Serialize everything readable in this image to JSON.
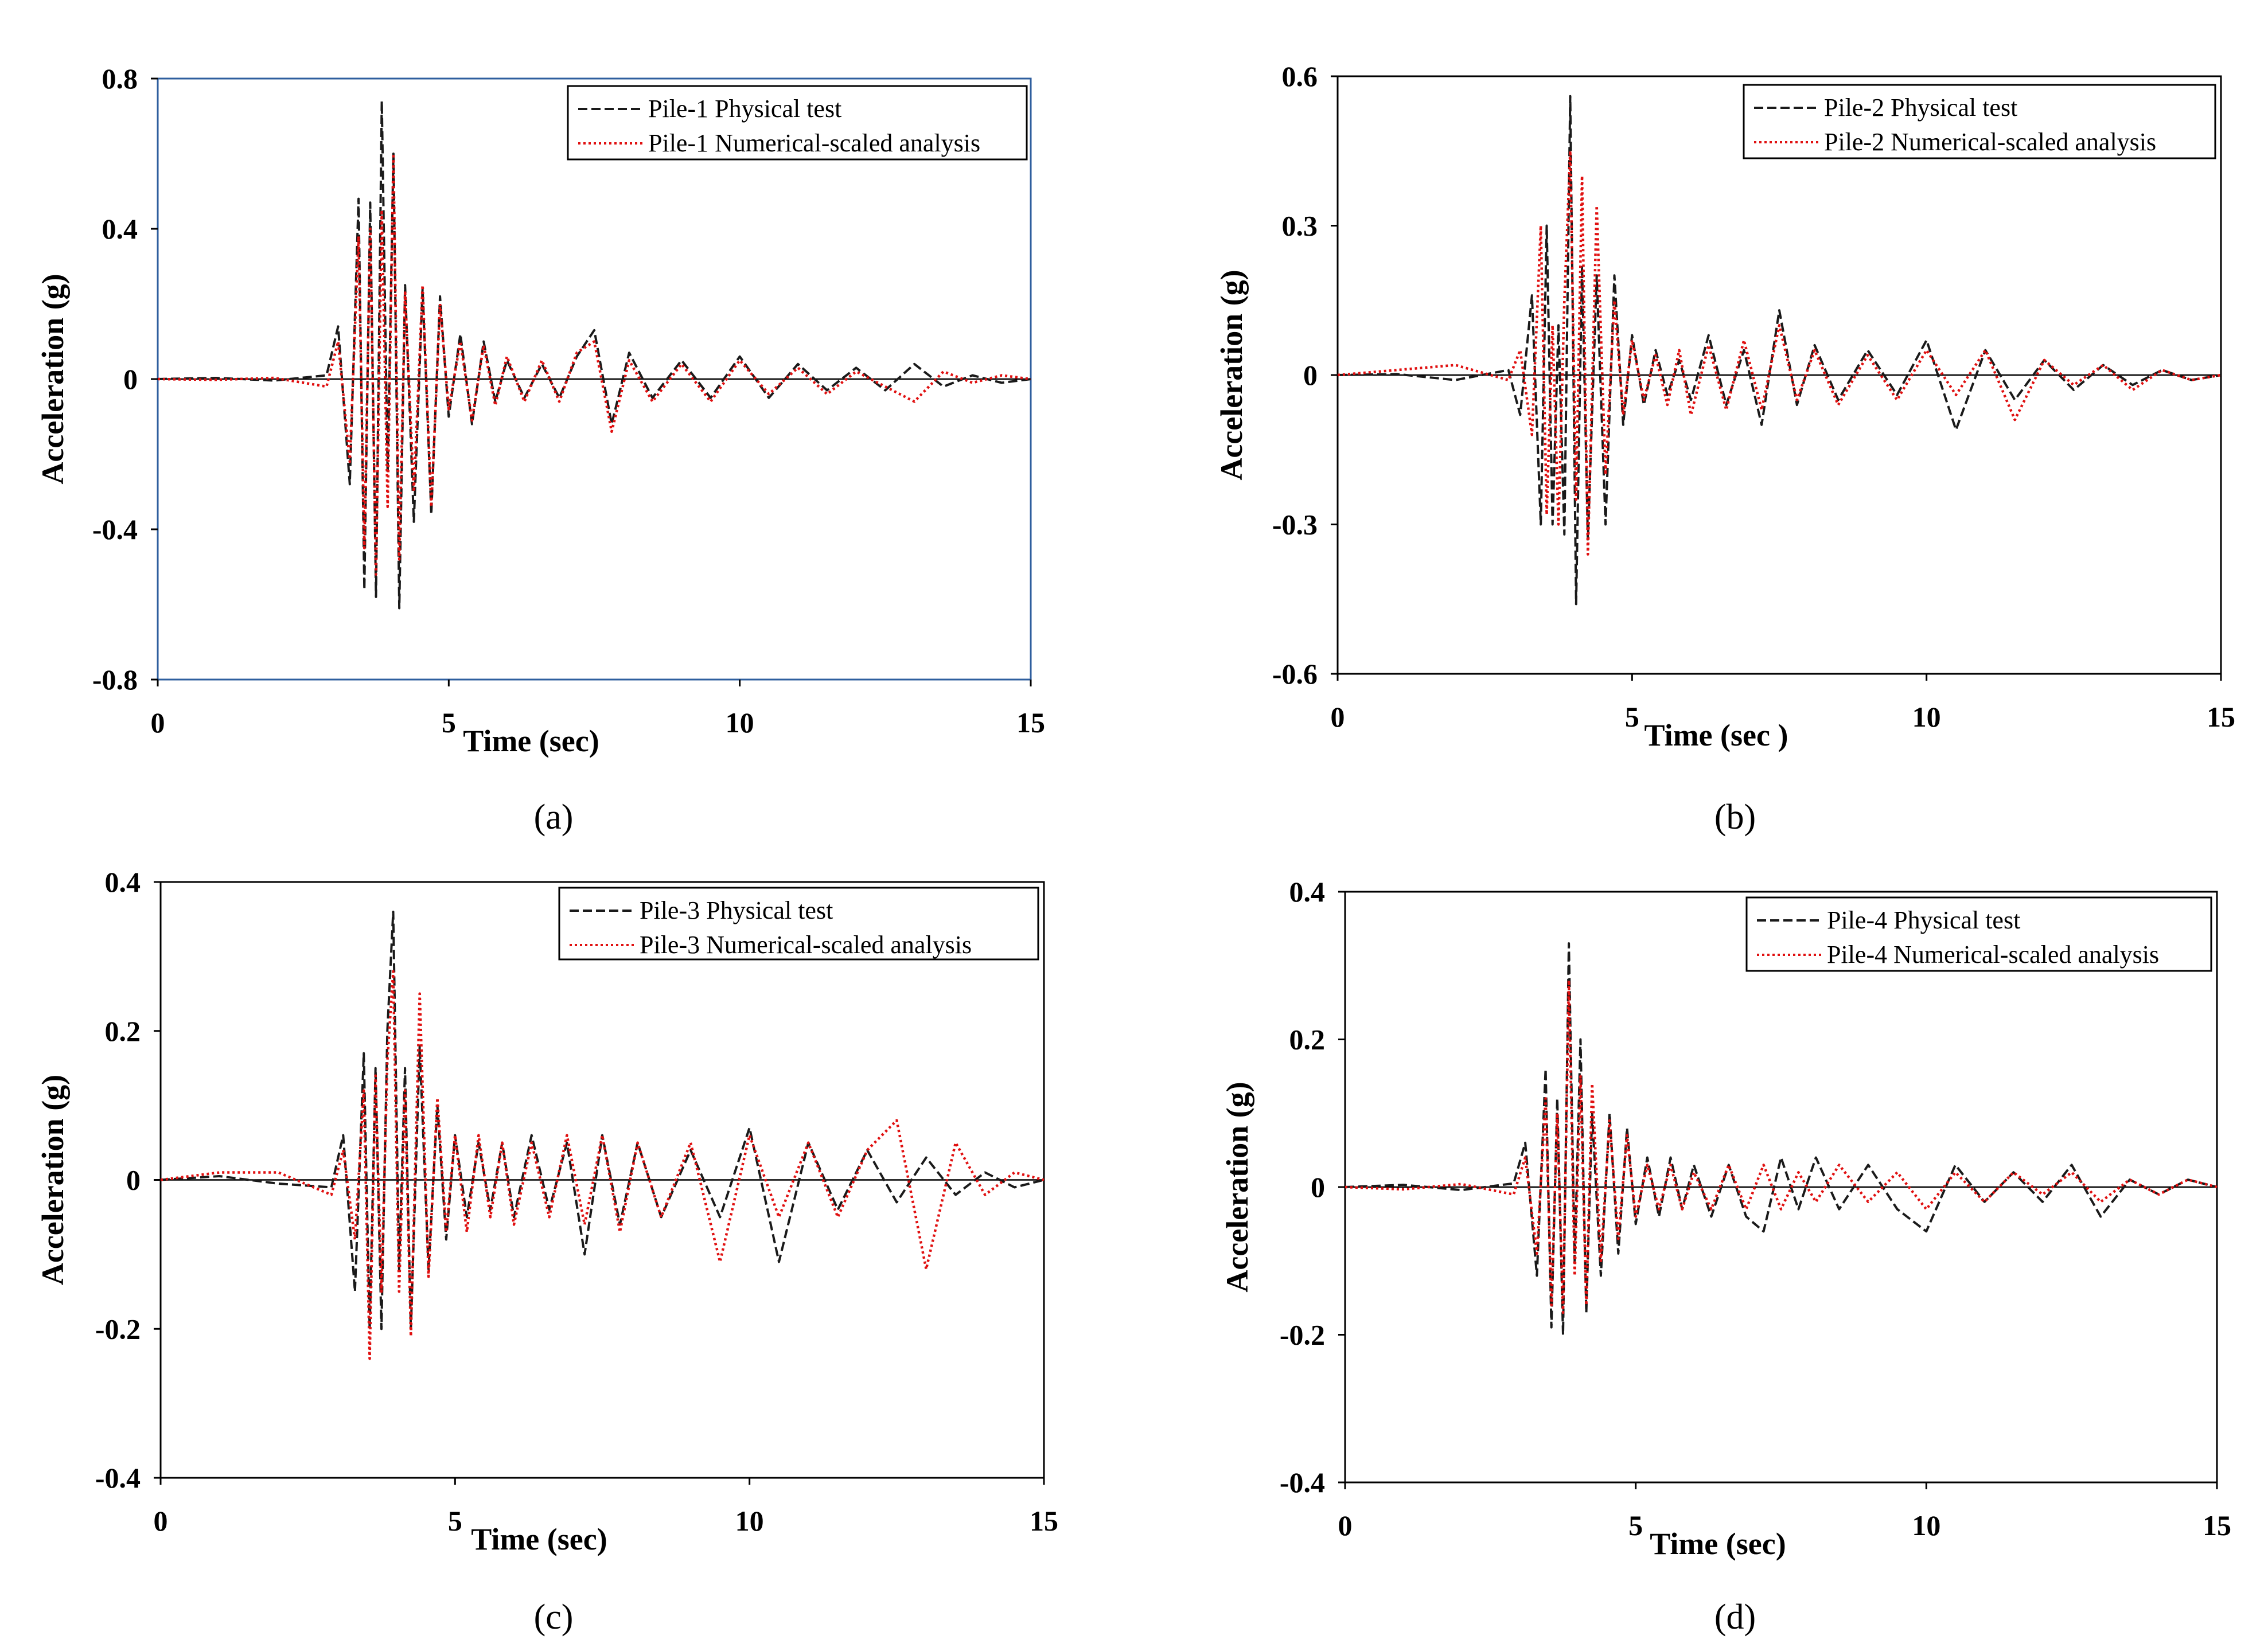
{
  "chart_data": [
    {
      "type": "line",
      "panel_label": "(a)",
      "xlabel": "Time (sec)",
      "ylabel": "Acceleration (g)",
      "xlim": [
        0,
        15
      ],
      "ylim": [
        -0.8,
        0.8
      ],
      "xticks": [
        0,
        5,
        10,
        15
      ],
      "xtick_labels": [
        "0",
        "5",
        "10",
        "15"
      ],
      "yticks": [
        -0.8,
        -0.4,
        0,
        0.4,
        0.8
      ],
      "ytick_labels": [
        "-0.8",
        "-0.4",
        "0",
        "0.4",
        "0.8"
      ],
      "legend_position": "top-right",
      "frame_color": "#2e5e9e",
      "series": [
        {
          "name": "Pile-1 Physical test",
          "color": "#1a1a1a",
          "style": "dashed",
          "x": [
            0,
            1,
            2,
            2.9,
            3.1,
            3.3,
            3.45,
            3.55,
            3.65,
            3.75,
            3.85,
            3.95,
            4.05,
            4.15,
            4.25,
            4.4,
            4.55,
            4.7,
            4.85,
            5.0,
            5.2,
            5.4,
            5.6,
            5.8,
            6.0,
            6.3,
            6.6,
            6.9,
            7.2,
            7.5,
            7.8,
            8.1,
            8.5,
            9.0,
            9.5,
            10.0,
            10.5,
            11.0,
            11.5,
            12.0,
            12.5,
            13.0,
            13.5,
            14.0,
            14.5,
            15.0
          ],
          "y": [
            0,
            0.003,
            -0.004,
            0.01,
            0.14,
            -0.28,
            0.48,
            -0.56,
            0.47,
            -0.58,
            0.74,
            -0.25,
            0.6,
            -0.61,
            0.25,
            -0.38,
            0.24,
            -0.36,
            0.22,
            -0.1,
            0.12,
            -0.12,
            0.1,
            -0.06,
            0.05,
            -0.05,
            0.04,
            -0.05,
            0.06,
            0.13,
            -0.12,
            0.07,
            -0.05,
            0.05,
            -0.05,
            0.06,
            -0.05,
            0.04,
            -0.03,
            0.03,
            -0.03,
            0.04,
            -0.02,
            0.01,
            -0.01,
            0
          ]
        },
        {
          "name": "Pile-1 Numerical-scaled  analysis",
          "color": "#e01010",
          "style": "dotted",
          "x": [
            0,
            1,
            2,
            2.9,
            3.1,
            3.3,
            3.45,
            3.55,
            3.65,
            3.75,
            3.85,
            3.95,
            4.05,
            4.15,
            4.25,
            4.4,
            4.55,
            4.7,
            4.85,
            5.0,
            5.2,
            5.4,
            5.6,
            5.8,
            6.0,
            6.3,
            6.6,
            6.9,
            7.2,
            7.5,
            7.8,
            8.1,
            8.5,
            9.0,
            9.5,
            10.0,
            10.5,
            11.0,
            11.5,
            12.0,
            12.5,
            13.0,
            13.5,
            14.0,
            14.5,
            15.0
          ],
          "y": [
            0,
            -0.002,
            0.003,
            -0.02,
            0.1,
            -0.22,
            0.38,
            -0.45,
            0.4,
            -0.52,
            0.45,
            -0.34,
            0.6,
            -0.48,
            0.23,
            -0.3,
            0.25,
            -0.34,
            0.2,
            -0.08,
            0.1,
            -0.11,
            0.09,
            -0.07,
            0.06,
            -0.06,
            0.05,
            -0.06,
            0.07,
            0.1,
            -0.14,
            0.05,
            -0.06,
            0.04,
            -0.06,
            0.05,
            -0.04,
            0.03,
            -0.04,
            0.02,
            -0.02,
            -0.06,
            0.02,
            -0.01,
            0.01,
            0
          ]
        }
      ]
    },
    {
      "type": "line",
      "panel_label": "(b)",
      "xlabel": "Time (sec )",
      "ylabel": "Acceleration (g)",
      "xlim": [
        0,
        15
      ],
      "ylim": [
        -0.6,
        0.6
      ],
      "xticks": [
        0,
        5,
        10,
        15
      ],
      "xtick_labels": [
        "0",
        "5",
        "10",
        "15"
      ],
      "yticks": [
        -0.6,
        -0.3,
        0,
        0.3,
        0.6
      ],
      "ytick_labels": [
        "-0.6",
        "-0.3",
        "0",
        "0.3",
        "0.6"
      ],
      "legend_position": "top-right",
      "frame_color": "#000000",
      "series": [
        {
          "name": "Pile-2 Physical test",
          "color": "#1a1a1a",
          "style": "dashed",
          "x": [
            0,
            1,
            2,
            2.9,
            3.1,
            3.3,
            3.45,
            3.55,
            3.65,
            3.75,
            3.85,
            3.95,
            4.05,
            4.15,
            4.25,
            4.4,
            4.55,
            4.7,
            4.85,
            5.0,
            5.2,
            5.4,
            5.6,
            5.8,
            6.0,
            6.3,
            6.6,
            6.9,
            7.2,
            7.5,
            7.8,
            8.1,
            8.5,
            9.0,
            9.5,
            10.0,
            10.5,
            11.0,
            11.5,
            12.0,
            12.5,
            13.0,
            13.5,
            14.0,
            14.5,
            15.0
          ],
          "y": [
            0,
            0.002,
            -0.01,
            0.01,
            -0.08,
            0.16,
            -0.3,
            0.3,
            -0.3,
            0.1,
            -0.32,
            0.56,
            -0.46,
            0.22,
            -0.33,
            0.2,
            -0.3,
            0.2,
            -0.1,
            0.08,
            -0.06,
            0.05,
            -0.04,
            0.03,
            -0.05,
            0.08,
            -0.06,
            0.05,
            -0.1,
            0.13,
            -0.06,
            0.06,
            -0.05,
            0.05,
            -0.04,
            0.07,
            -0.11,
            0.05,
            -0.05,
            0.03,
            -0.03,
            0.02,
            -0.02,
            0.01,
            -0.01,
            0
          ]
        },
        {
          "name": "Pile-2 Numerical-scaled  analysis",
          "color": "#e01010",
          "style": "dotted",
          "x": [
            0,
            1,
            2,
            2.9,
            3.1,
            3.3,
            3.45,
            3.55,
            3.65,
            3.75,
            3.85,
            3.95,
            4.05,
            4.15,
            4.25,
            4.4,
            4.55,
            4.7,
            4.85,
            5.0,
            5.2,
            5.4,
            5.6,
            5.8,
            6.0,
            6.3,
            6.6,
            6.9,
            7.2,
            7.5,
            7.8,
            8.1,
            8.5,
            9.0,
            9.5,
            10.0,
            10.5,
            11.0,
            11.5,
            12.0,
            12.5,
            13.0,
            13.5,
            14.0,
            14.5,
            15.0
          ],
          "y": [
            0,
            0.01,
            0.02,
            -0.01,
            0.05,
            -0.12,
            0.3,
            -0.28,
            0.1,
            -0.3,
            0.15,
            0.45,
            -0.25,
            0.4,
            -0.36,
            0.34,
            -0.2,
            0.15,
            -0.08,
            0.07,
            -0.05,
            0.04,
            -0.06,
            0.05,
            -0.08,
            0.06,
            -0.07,
            0.07,
            -0.07,
            0.1,
            -0.05,
            0.05,
            -0.06,
            0.04,
            -0.05,
            0.05,
            -0.04,
            0.05,
            -0.09,
            0.03,
            -0.02,
            0.02,
            -0.03,
            0.01,
            -0.01,
            0
          ]
        }
      ]
    },
    {
      "type": "line",
      "panel_label": "(c)",
      "xlabel": "Time (sec)",
      "ylabel": "Acceleration (g)",
      "xlim": [
        0,
        15
      ],
      "ylim": [
        -0.4,
        0.4
      ],
      "xticks": [
        0,
        5,
        10,
        15
      ],
      "xtick_labels": [
        "0",
        "5",
        "10",
        "15"
      ],
      "yticks": [
        -0.4,
        -0.2,
        0,
        0.2,
        0.4
      ],
      "ytick_labels": [
        "-0.4",
        "-0.2",
        "0",
        "0.2",
        "0.4"
      ],
      "legend_position": "top-right",
      "frame_color": "#000000",
      "series": [
        {
          "name": "Pile-3 Physical test",
          "color": "#1a1a1a",
          "style": "dashed",
          "x": [
            0,
            1,
            2,
            2.9,
            3.1,
            3.3,
            3.45,
            3.55,
            3.65,
            3.75,
            3.85,
            3.95,
            4.05,
            4.15,
            4.25,
            4.4,
            4.55,
            4.7,
            4.85,
            5.0,
            5.2,
            5.4,
            5.6,
            5.8,
            6.0,
            6.3,
            6.6,
            6.9,
            7.2,
            7.5,
            7.8,
            8.1,
            8.5,
            9.0,
            9.5,
            10.0,
            10.5,
            11.0,
            11.5,
            12.0,
            12.5,
            13.0,
            13.5,
            14.0,
            14.5,
            15.0
          ],
          "y": [
            0,
            0.005,
            -0.005,
            -0.01,
            0.06,
            -0.15,
            0.17,
            -0.2,
            0.15,
            -0.2,
            0.2,
            0.36,
            -0.12,
            0.15,
            -0.2,
            0.18,
            -0.12,
            0.1,
            -0.08,
            0.06,
            -0.05,
            0.05,
            -0.04,
            0.05,
            -0.05,
            0.06,
            -0.04,
            0.05,
            -0.1,
            0.06,
            -0.06,
            0.05,
            -0.05,
            0.04,
            -0.05,
            0.07,
            -0.11,
            0.05,
            -0.04,
            0.04,
            -0.03,
            0.03,
            -0.02,
            0.01,
            -0.01,
            0
          ]
        },
        {
          "name": "Pile-3 Numerical-scaled  analysis",
          "color": "#e01010",
          "style": "dotted",
          "x": [
            0,
            1,
            2,
            2.9,
            3.1,
            3.3,
            3.45,
            3.55,
            3.65,
            3.75,
            3.85,
            3.95,
            4.05,
            4.15,
            4.25,
            4.4,
            4.55,
            4.7,
            4.85,
            5.0,
            5.2,
            5.4,
            5.6,
            5.8,
            6.0,
            6.3,
            6.6,
            6.9,
            7.2,
            7.5,
            7.8,
            8.1,
            8.5,
            9.0,
            9.5,
            10.0,
            10.5,
            11.0,
            11.5,
            12.0,
            12.5,
            13.0,
            13.5,
            14.0,
            14.5,
            15.0
          ],
          "y": [
            0,
            0.01,
            0.01,
            -0.02,
            0.04,
            -0.08,
            0.12,
            -0.24,
            0.14,
            -0.15,
            0.16,
            0.28,
            -0.15,
            0.12,
            -0.21,
            0.25,
            -0.13,
            0.11,
            -0.07,
            0.06,
            -0.07,
            0.06,
            -0.05,
            0.05,
            -0.06,
            0.05,
            -0.05,
            0.06,
            -0.06,
            0.06,
            -0.07,
            0.05,
            -0.05,
            0.05,
            -0.11,
            0.06,
            -0.05,
            0.05,
            -0.05,
            0.04,
            0.08,
            -0.12,
            0.05,
            -0.02,
            0.01,
            0
          ]
        }
      ]
    },
    {
      "type": "line",
      "panel_label": "(d)",
      "xlabel": "Time (sec)",
      "ylabel": "Acceleration (g)",
      "xlim": [
        0,
        15
      ],
      "ylim": [
        -0.4,
        0.4
      ],
      "xticks": [
        0,
        5,
        10,
        15
      ],
      "xtick_labels": [
        "0",
        "5",
        "10",
        "15"
      ],
      "yticks": [
        -0.4,
        -0.2,
        0,
        0.2,
        0.4
      ],
      "ytick_labels": [
        "-0.4",
        "-0.2",
        "0",
        "0.2",
        "0.4"
      ],
      "legend_position": "top-right",
      "frame_color": "#000000",
      "series": [
        {
          "name": "Pile-4 Physical test",
          "color": "#1a1a1a",
          "style": "dashed",
          "x": [
            0,
            1,
            2,
            2.9,
            3.1,
            3.3,
            3.45,
            3.55,
            3.65,
            3.75,
            3.85,
            3.95,
            4.05,
            4.15,
            4.25,
            4.4,
            4.55,
            4.7,
            4.85,
            5.0,
            5.2,
            5.4,
            5.6,
            5.8,
            6.0,
            6.3,
            6.6,
            6.9,
            7.2,
            7.5,
            7.8,
            8.1,
            8.5,
            9.0,
            9.5,
            10.0,
            10.5,
            11.0,
            11.5,
            12.0,
            12.5,
            13.0,
            13.5,
            14.0,
            14.5,
            15.0
          ],
          "y": [
            0,
            0.003,
            -0.004,
            0.005,
            0.06,
            -0.12,
            0.16,
            -0.19,
            0.12,
            -0.2,
            0.33,
            -0.1,
            0.2,
            -0.17,
            0.1,
            -0.12,
            0.1,
            -0.09,
            0.08,
            -0.05,
            0.04,
            -0.04,
            0.04,
            -0.03,
            0.03,
            -0.04,
            0.03,
            -0.04,
            -0.06,
            0.04,
            -0.03,
            0.04,
            -0.03,
            0.03,
            -0.03,
            -0.06,
            0.03,
            -0.02,
            0.02,
            -0.02,
            0.03,
            -0.04,
            0.01,
            -0.01,
            0.01,
            0
          ]
        },
        {
          "name": "Pile-4 Numerical-scaled  analysis",
          "color": "#e01010",
          "style": "dotted",
          "x": [
            0,
            1,
            2,
            2.9,
            3.1,
            3.3,
            3.45,
            3.55,
            3.65,
            3.75,
            3.85,
            3.95,
            4.05,
            4.15,
            4.25,
            4.4,
            4.55,
            4.7,
            4.85,
            5.0,
            5.2,
            5.4,
            5.6,
            5.8,
            6.0,
            6.3,
            6.6,
            6.9,
            7.2,
            7.5,
            7.8,
            8.1,
            8.5,
            9.0,
            9.5,
            10.0,
            10.5,
            11.0,
            11.5,
            12.0,
            12.5,
            13.0,
            13.5,
            14.0,
            14.5,
            15.0
          ],
          "y": [
            0,
            -0.003,
            0.004,
            -0.01,
            0.04,
            -0.09,
            0.12,
            -0.16,
            0.1,
            -0.17,
            0.28,
            -0.12,
            0.15,
            -0.16,
            0.14,
            -0.1,
            0.09,
            -0.07,
            0.07,
            -0.04,
            0.03,
            -0.03,
            0.03,
            -0.03,
            0.02,
            -0.03,
            0.03,
            -0.03,
            0.03,
            -0.03,
            0.02,
            -0.02,
            0.03,
            -0.02,
            0.02,
            -0.03,
            0.02,
            -0.02,
            0.02,
            -0.01,
            0.02,
            -0.02,
            0.01,
            -0.01,
            0.01,
            0
          ]
        }
      ]
    }
  ]
}
